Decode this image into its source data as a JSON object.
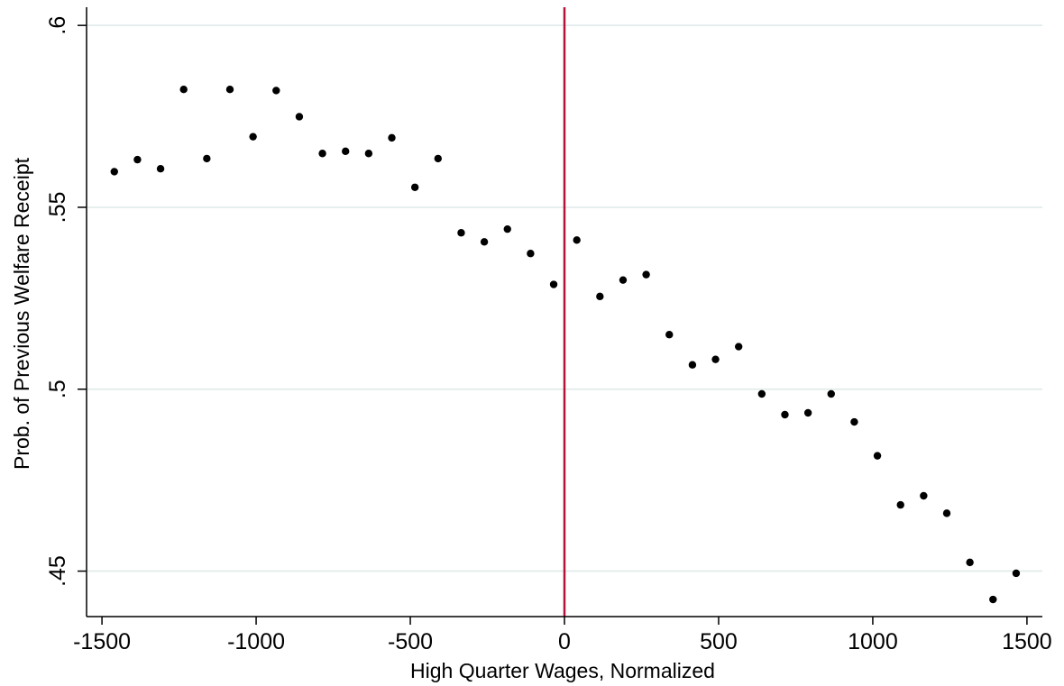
{
  "chart_data": {
    "type": "scatter",
    "title": "",
    "xlabel": "High Quarter Wages, Normalized",
    "ylabel": "Prob. of Previous Welfare Receipt",
    "xlim": [
      -1550,
      1550
    ],
    "ylim": [
      0.4375,
      0.605
    ],
    "xticks": [
      -1500,
      -1000,
      -500,
      0,
      500,
      1000,
      1500
    ],
    "xtick_labels": [
      "-1500",
      "-1000",
      "-500",
      "0",
      "500",
      "1000",
      "1500"
    ],
    "yticks": [
      0.45,
      0.5,
      0.55,
      0.6
    ],
    "ytick_labels": [
      ".45",
      ".5",
      ".55",
      ".6"
    ],
    "grid": "horizontal",
    "vline_x": 0,
    "colors": {
      "points": "#000000",
      "vline": "#b5123a",
      "grid": "#dde8e8",
      "axis": "#000000"
    },
    "x": [
      -1460,
      -1385,
      -1310,
      -1235,
      -1160,
      -1085,
      -1010,
      -935,
      -860,
      -785,
      -710,
      -635,
      -560,
      -485,
      -410,
      -335,
      -260,
      -185,
      -110,
      -35,
      40,
      115,
      190,
      265,
      340,
      415,
      490,
      565,
      640,
      715,
      790,
      865,
      940,
      1015,
      1090,
      1165,
      1240,
      1315,
      1390,
      1465
    ],
    "y": [
      0.5598,
      0.5631,
      0.5606,
      0.5824,
      0.5634,
      0.5824,
      0.5694,
      0.5821,
      0.5749,
      0.5648,
      0.5654,
      0.5648,
      0.5691,
      0.5555,
      0.5634,
      0.543,
      0.5405,
      0.544,
      0.5373,
      0.5288,
      0.541,
      0.5255,
      0.53,
      0.5315,
      0.515,
      0.5067,
      0.5082,
      0.5117,
      0.4987,
      0.493,
      0.4935,
      0.4987,
      0.491,
      0.4817,
      0.4682,
      0.4707,
      0.4659,
      0.4524,
      0.4422,
      0.4494
    ]
  }
}
